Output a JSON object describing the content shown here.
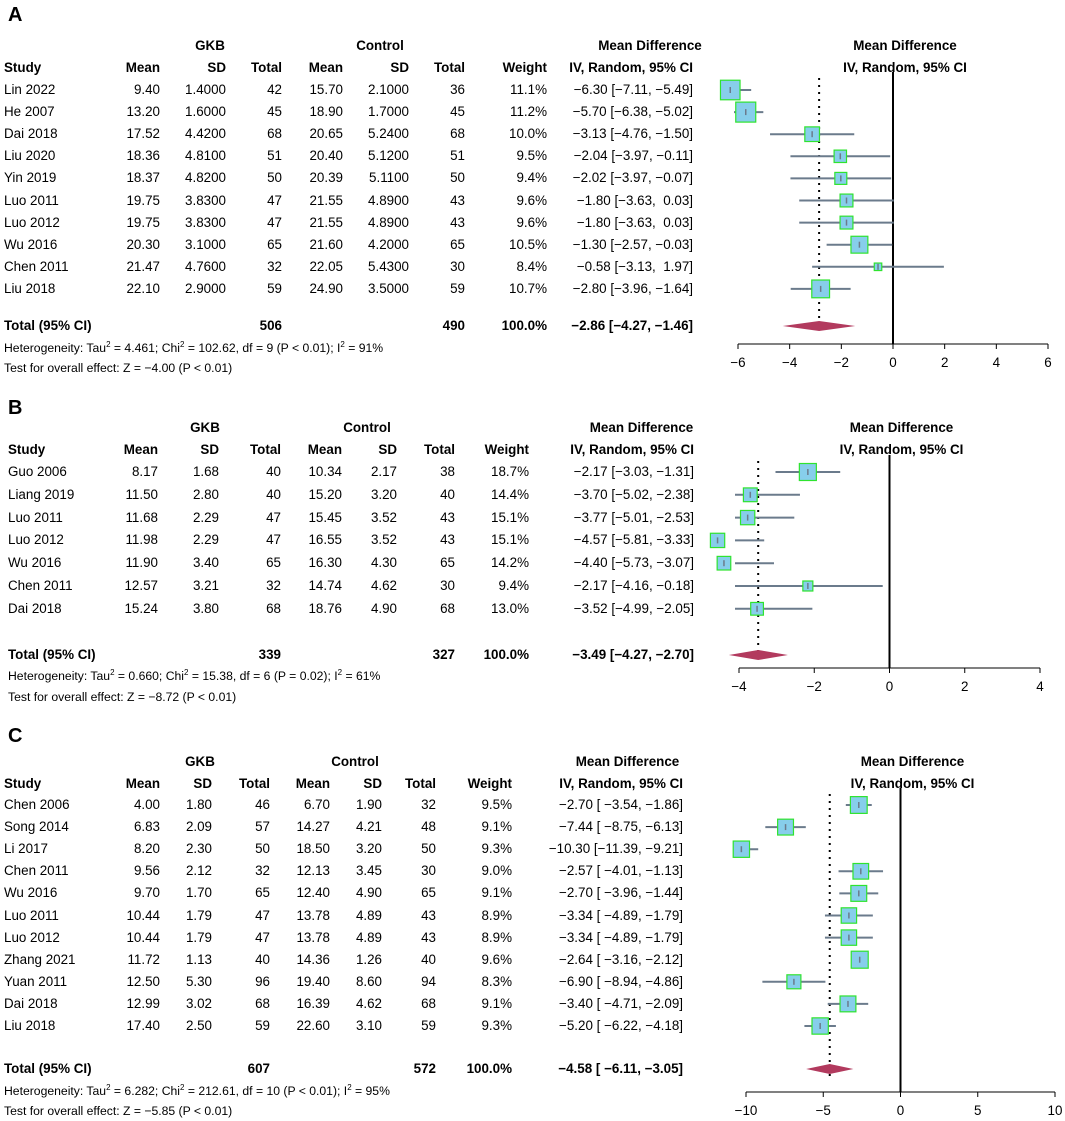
{
  "colors": {
    "box_fill": "#87CEEB",
    "box_stroke": "#2FE32F",
    "ci_line": "#6B7B8C",
    "diamond": "#B23A5E",
    "axis": "#000000"
  },
  "columns": {
    "group1": "GKB",
    "group2": "Control",
    "study": "Study",
    "mean": "Mean",
    "sd": "SD",
    "total": "Total",
    "weight": "Weight",
    "md": "Mean Difference",
    "md_sub": "IV, Random, 95% CI"
  },
  "chart_data": [
    {
      "type": "forest",
      "panel": "A",
      "axis_ticks": [
        "−6",
        "−4",
        "−2",
        "0",
        "2",
        "4",
        "6"
      ],
      "xlim": [
        -6,
        6
      ],
      "studies": [
        {
          "study": "Lin 2022",
          "m1": "9.40",
          "sd1": "1.4000",
          "n1": "42",
          "m2": "15.70",
          "sd2": "2.1000",
          "n2": "36",
          "weight": "11.1%",
          "ci": "−6.30 [−7.11, −5.49]",
          "md": -6.3,
          "lo": -7.11,
          "hi": -5.49,
          "w": 11.1
        },
        {
          "study": "He 2007",
          "m1": "13.20",
          "sd1": "1.6000",
          "n1": "45",
          "m2": "18.90",
          "sd2": "1.7000",
          "n2": "45",
          "weight": "11.2%",
          "ci": "−5.70 [−6.38, −5.02]",
          "md": -5.7,
          "lo": -6.38,
          "hi": -5.02,
          "w": 11.2
        },
        {
          "study": "Dai 2018",
          "m1": "17.52",
          "sd1": "4.4200",
          "n1": "68",
          "m2": "20.65",
          "sd2": "5.2400",
          "n2": "68",
          "weight": "10.0%",
          "ci": "−3.13 [−4.76, −1.50]",
          "md": -3.13,
          "lo": -4.76,
          "hi": -1.5,
          "w": 10.0
        },
        {
          "study": "Liu 2020",
          "m1": "18.36",
          "sd1": "4.8100",
          "n1": "51",
          "m2": "20.40",
          "sd2": "5.1200",
          "n2": "51",
          "weight": "9.5%",
          "ci": "−2.04 [−3.97, −0.11]",
          "md": -2.04,
          "lo": -3.97,
          "hi": -0.11,
          "w": 9.5
        },
        {
          "study": "Yin 2019",
          "m1": "18.37",
          "sd1": "4.8200",
          "n1": "50",
          "m2": "20.39",
          "sd2": "5.1100",
          "n2": "50",
          "weight": "9.4%",
          "ci": "−2.02 [−3.97, −0.07]",
          "md": -2.02,
          "lo": -3.97,
          "hi": -0.07,
          "w": 9.4
        },
        {
          "study": "Luo 2011",
          "m1": "19.75",
          "sd1": "3.8300",
          "n1": "47",
          "m2": "21.55",
          "sd2": "4.8900",
          "n2": "43",
          "weight": "9.6%",
          "ci": "−1.80 [−3.63,  0.03]",
          "md": -1.8,
          "lo": -3.63,
          "hi": 0.03,
          "w": 9.6
        },
        {
          "study": "Luo 2012",
          "m1": "19.75",
          "sd1": "3.8300",
          "n1": "47",
          "m2": "21.55",
          "sd2": "4.8900",
          "n2": "43",
          "weight": "9.6%",
          "ci": "−1.80 [−3.63,  0.03]",
          "md": -1.8,
          "lo": -3.63,
          "hi": 0.03,
          "w": 9.6
        },
        {
          "study": "Wu 2016",
          "m1": "20.30",
          "sd1": "3.1000",
          "n1": "65",
          "m2": "21.60",
          "sd2": "4.2000",
          "n2": "65",
          "weight": "10.5%",
          "ci": "−1.30 [−2.57, −0.03]",
          "md": -1.3,
          "lo": -2.57,
          "hi": -0.03,
          "w": 10.5
        },
        {
          "study": "Chen 2011",
          "m1": "21.47",
          "sd1": "4.7600",
          "n1": "32",
          "m2": "22.05",
          "sd2": "5.4300",
          "n2": "30",
          "weight": "8.4%",
          "ci": "−0.58 [−3.13,  1.97]",
          "md": -0.58,
          "lo": -3.13,
          "hi": 1.97,
          "w": 8.4
        },
        {
          "study": "Liu 2018",
          "m1": "22.10",
          "sd1": "2.9000",
          "n1": "59",
          "m2": "24.90",
          "sd2": "3.5000",
          "n2": "59",
          "weight": "10.7%",
          "ci": "−2.80 [−3.96, −1.64]",
          "md": -2.8,
          "lo": -3.96,
          "hi": -1.64,
          "w": 10.7
        }
      ],
      "total": {
        "label": "Total (95% CI)",
        "n1": "506",
        "n2": "490",
        "weight": "100.0%",
        "ci": "−2.86 [−4.27, −1.46]",
        "md": -2.86,
        "lo": -4.27,
        "hi": -1.46
      },
      "heterogeneity": {
        "prefix": "Heterogeneity: Tau",
        "sup1": "2",
        "mid": " = 4.461; Chi",
        "sup2": "2",
        "mid2": " = 102.62, df = 9 (P < 0.01); I",
        "sup3": "2",
        "end": " = 91%"
      },
      "overall": "Test for overall effect: Z = −4.00 (P < 0.01)"
    },
    {
      "type": "forest",
      "panel": "B",
      "axis_ticks": [
        "−4",
        "−2",
        "0",
        "2",
        "4"
      ],
      "xlim": [
        -4,
        4
      ],
      "studies": [
        {
          "study": "Guo 2006",
          "m1": "8.17",
          "sd1": "1.68",
          "n1": "40",
          "m2": "10.34",
          "sd2": "2.17",
          "n2": "38",
          "weight": "18.7%",
          "ci": "−2.17 [−3.03, −1.31]",
          "md": -2.17,
          "lo": -3.03,
          "hi": -1.31,
          "w": 18.7
        },
        {
          "study": "Liang 2019",
          "m1": "11.50",
          "sd1": "2.80",
          "n1": "40",
          "m2": "15.20",
          "sd2": "3.20",
          "n2": "40",
          "weight": "14.4%",
          "ci": "−3.70 [−5.02, −2.38]",
          "md": -3.7,
          "lo": -5.02,
          "hi": -2.38,
          "w": 14.4
        },
        {
          "study": "Luo 2011",
          "m1": "11.68",
          "sd1": "2.29",
          "n1": "47",
          "m2": "15.45",
          "sd2": "3.52",
          "n2": "43",
          "weight": "15.1%",
          "ci": "−3.77 [−5.01, −2.53]",
          "md": -3.77,
          "lo": -5.01,
          "hi": -2.53,
          "w": 15.1
        },
        {
          "study": "Luo 2012",
          "m1": "11.98",
          "sd1": "2.29",
          "n1": "47",
          "m2": "16.55",
          "sd2": "3.52",
          "n2": "43",
          "weight": "15.1%",
          "ci": "−4.57 [−5.81, −3.33]",
          "md": -4.57,
          "lo": -5.81,
          "hi": -3.33,
          "w": 15.1
        },
        {
          "study": "Wu 2016",
          "m1": "11.90",
          "sd1": "3.40",
          "n1": "65",
          "m2": "16.30",
          "sd2": "4.30",
          "n2": "65",
          "weight": "14.2%",
          "ci": "−4.40 [−5.73, −3.07]",
          "md": -4.4,
          "lo": -5.73,
          "hi": -3.07,
          "w": 14.2
        },
        {
          "study": "Chen 2011",
          "m1": "12.57",
          "sd1": "3.21",
          "n1": "32",
          "m2": "14.74",
          "sd2": "4.62",
          "n2": "30",
          "weight": "9.4%",
          "ci": "−2.17 [−4.16, −0.18]",
          "md": -2.17,
          "lo": -4.16,
          "hi": -0.18,
          "w": 9.4
        },
        {
          "study": "Dai 2018",
          "m1": "15.24",
          "sd1": "3.80",
          "n1": "68",
          "m2": "18.76",
          "sd2": "4.90",
          "n2": "68",
          "weight": "13.0%",
          "ci": "−3.52 [−4.99, −2.05]",
          "md": -3.52,
          "lo": -4.99,
          "hi": -2.05,
          "w": 13.0
        }
      ],
      "total": {
        "label": "Total (95% CI)",
        "n1": "339",
        "n2": "327",
        "weight": "100.0%",
        "ci": "−3.49 [−4.27, −2.70]",
        "md": -3.49,
        "lo": -4.27,
        "hi": -2.7
      },
      "heterogeneity": {
        "prefix": "Heterogeneity: Tau",
        "sup1": "2",
        "mid": " = 0.660; Chi",
        "sup2": "2",
        "mid2": " = 15.38, df = 6 (P = 0.02); I",
        "sup3": "2",
        "end": " = 61%"
      },
      "overall": "Test for overall effect: Z = −8.72 (P < 0.01)"
    },
    {
      "type": "forest",
      "panel": "C",
      "axis_ticks": [
        "−10",
        "−5",
        "0",
        "5",
        "10"
      ],
      "xlim": [
        -10,
        10
      ],
      "studies": [
        {
          "study": "Chen 2006",
          "m1": "4.00",
          "sd1": "1.80",
          "n1": "46",
          "m2": "6.70",
          "sd2": "1.90",
          "n2": "32",
          "weight": "9.5%",
          "ci": "−2.70 [ −3.54, −1.86]",
          "md": -2.7,
          "lo": -3.54,
          "hi": -1.86,
          "w": 9.5
        },
        {
          "study": "Song 2014",
          "m1": "6.83",
          "sd1": "2.09",
          "n1": "57",
          "m2": "14.27",
          "sd2": "4.21",
          "n2": "48",
          "weight": "9.1%",
          "ci": "−7.44 [ −8.75, −6.13]",
          "md": -7.44,
          "lo": -8.75,
          "hi": -6.13,
          "w": 9.1
        },
        {
          "study": "Li 2017",
          "m1": "8.20",
          "sd1": "2.30",
          "n1": "50",
          "m2": "18.50",
          "sd2": "3.20",
          "n2": "50",
          "weight": "9.3%",
          "ci": "−10.30 [−11.39, −9.21]",
          "md": -10.3,
          "lo": -11.39,
          "hi": -9.21,
          "w": 9.3
        },
        {
          "study": "Chen 2011",
          "m1": "9.56",
          "sd1": "2.12",
          "n1": "32",
          "m2": "12.13",
          "sd2": "3.45",
          "n2": "30",
          "weight": "9.0%",
          "ci": "−2.57 [ −4.01, −1.13]",
          "md": -2.57,
          "lo": -4.01,
          "hi": -1.13,
          "w": 9.0
        },
        {
          "study": "Wu 2016",
          "m1": "9.70",
          "sd1": "1.70",
          "n1": "65",
          "m2": "12.40",
          "sd2": "4.90",
          "n2": "65",
          "weight": "9.1%",
          "ci": "−2.70 [ −3.96, −1.44]",
          "md": -2.7,
          "lo": -3.96,
          "hi": -1.44,
          "w": 9.1
        },
        {
          "study": "Luo 2011",
          "m1": "10.44",
          "sd1": "1.79",
          "n1": "47",
          "m2": "13.78",
          "sd2": "4.89",
          "n2": "43",
          "weight": "8.9%",
          "ci": "−3.34 [ −4.89, −1.79]",
          "md": -3.34,
          "lo": -4.89,
          "hi": -1.79,
          "w": 8.9
        },
        {
          "study": "Luo 2012",
          "m1": "10.44",
          "sd1": "1.79",
          "n1": "47",
          "m2": "13.78",
          "sd2": "4.89",
          "n2": "43",
          "weight": "8.9%",
          "ci": "−3.34 [ −4.89, −1.79]",
          "md": -3.34,
          "lo": -4.89,
          "hi": -1.79,
          "w": 8.9
        },
        {
          "study": "Zhang 2021",
          "m1": "11.72",
          "sd1": "1.13",
          "n1": "40",
          "m2": "14.36",
          "sd2": "1.26",
          "n2": "40",
          "weight": "9.6%",
          "ci": "−2.64 [ −3.16, −2.12]",
          "md": -2.64,
          "lo": -3.16,
          "hi": -2.12,
          "w": 9.6
        },
        {
          "study": "Yuan 2011",
          "m1": "12.50",
          "sd1": "5.30",
          "n1": "96",
          "m2": "19.40",
          "sd2": "8.60",
          "n2": "94",
          "weight": "8.3%",
          "ci": "−6.90 [ −8.94, −4.86]",
          "md": -6.9,
          "lo": -8.94,
          "hi": -4.86,
          "w": 8.3
        },
        {
          "study": "Dai 2018",
          "m1": "12.99",
          "sd1": "3.02",
          "n1": "68",
          "m2": "16.39",
          "sd2": "4.62",
          "n2": "68",
          "weight": "9.1%",
          "ci": "−3.40 [ −4.71, −2.09]",
          "md": -3.4,
          "lo": -4.71,
          "hi": -2.09,
          "w": 9.1
        },
        {
          "study": "Liu 2018",
          "m1": "17.40",
          "sd1": "2.50",
          "n1": "59",
          "m2": "22.60",
          "sd2": "3.10",
          "n2": "59",
          "weight": "9.3%",
          "ci": "−5.20 [ −6.22, −4.18]",
          "md": -5.2,
          "lo": -6.22,
          "hi": -4.18,
          "w": 9.3
        }
      ],
      "total": {
        "label": "Total (95% CI)",
        "n1": "607",
        "n2": "572",
        "weight": "100.0%",
        "ci": "−4.58 [ −6.11, −3.05]",
        "md": -4.58,
        "lo": -6.11,
        "hi": -3.05
      },
      "heterogeneity": {
        "prefix": "Heterogeneity: Tau",
        "sup1": "2",
        "mid": " = 6.282; Chi",
        "sup2": "2",
        "mid2": " = 212.61, df = 10 (P < 0.01); I",
        "sup3": "2",
        "end": " = 95%"
      },
      "overall": "Test for overall effect: Z = −5.85 (P < 0.01)"
    }
  ]
}
